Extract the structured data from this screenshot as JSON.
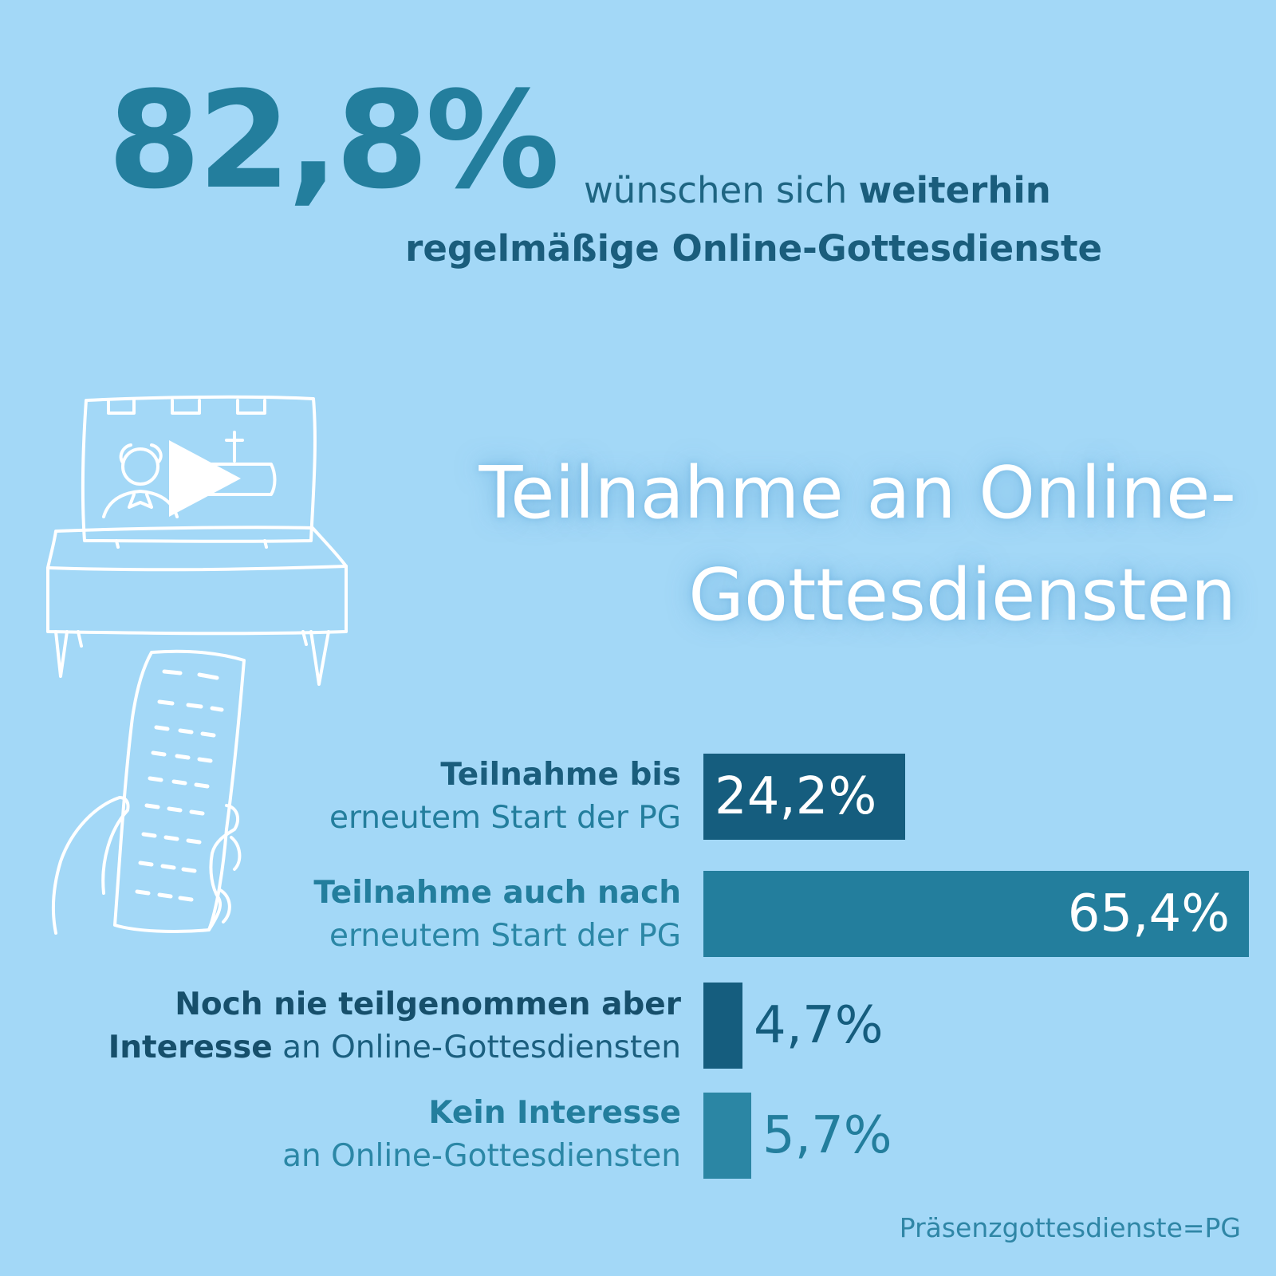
{
  "headline": {
    "percent": "82,8%",
    "text_plain": "wünschen sich",
    "text_bold": "weiterhin",
    "line2": "regelmäßige Online-Gottesdienste"
  },
  "section_title": {
    "line1": "Teilnahme an Online-",
    "line2": "Gottesdiensten"
  },
  "footnote": "Präsenzgottesdienste=PG",
  "colors": {
    "background": "#a3d8f7",
    "bar_dark": "#155d7e",
    "bar_mid": "#237e9d",
    "bar_light": "#2b86a4"
  },
  "icons": [
    "tv-icon",
    "remote-control-icon",
    "play-icon",
    "cross-icon"
  ],
  "chart_data": {
    "type": "bar",
    "orientation": "horizontal",
    "xlim": [
      0,
      100
    ],
    "categories": [
      {
        "strong": "Teilnahme bis",
        "light": "erneutem Start der PG"
      },
      {
        "strong": "Teilnahme auch nach",
        "light": "erneutem Start der PG"
      },
      {
        "strong": "Noch nie teilgenommen aber",
        "strong2": "Interesse",
        "light": "an Online-Gottesdiensten"
      },
      {
        "strong": "Kein Interesse",
        "light": "an Online-Gottesdiensten"
      }
    ],
    "values": [
      24.2,
      65.4,
      4.7,
      5.7
    ],
    "value_labels": [
      "24,2%",
      "65,4%",
      "4,7%",
      "5,7%"
    ]
  }
}
